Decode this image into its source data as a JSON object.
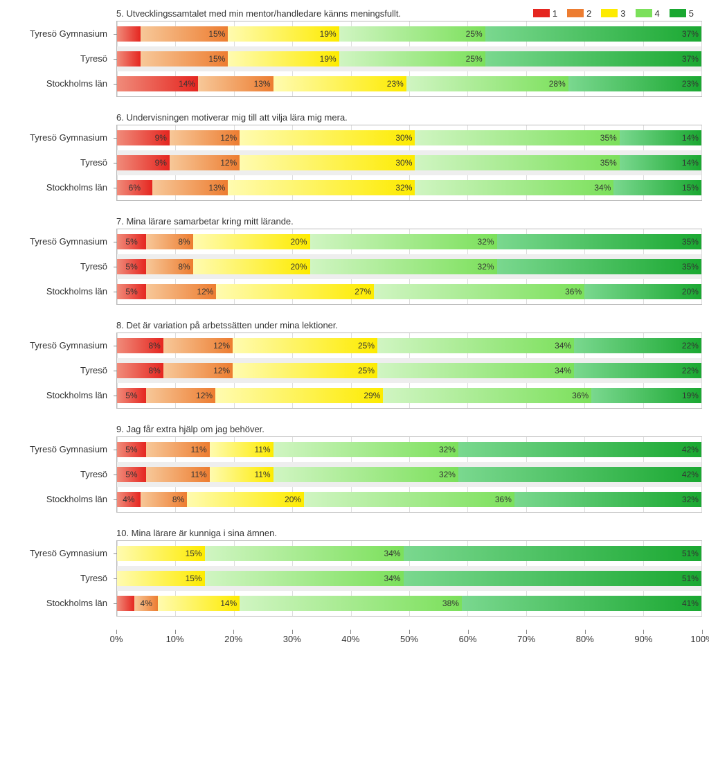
{
  "legend": {
    "items": [
      "1",
      "2",
      "3",
      "4",
      "5"
    ],
    "colors": [
      "#e52620",
      "#ed7d31",
      "#fdeb00",
      "#7be05b",
      "#1aa831"
    ]
  },
  "gradients": {
    "1": [
      "#f08b7a",
      "#e52620"
    ],
    "2": [
      "#f7c899",
      "#ed7d31"
    ],
    "3": [
      "#fffbb0",
      "#fdeb00"
    ],
    "4": [
      "#d0f5c2",
      "#7be05b"
    ],
    "5": [
      "#7ad88f",
      "#1aa831"
    ]
  },
  "x_axis": {
    "ticks": [
      0,
      10,
      20,
      30,
      40,
      50,
      60,
      70,
      80,
      90,
      100
    ],
    "labels": [
      "0%",
      "10%",
      "20%",
      "30%",
      "40%",
      "50%",
      "60%",
      "70%",
      "80%",
      "90%",
      "100%"
    ]
  },
  "row_alt_bg": "#eeeeee",
  "charts": [
    {
      "title": "5. Utvecklingssamtalet med min mentor/handledare känns meningsfullt.",
      "show_legend": true,
      "rows": [
        {
          "label": "Tyresö Gymnasium",
          "values": [
            4,
            15,
            19,
            25,
            37
          ],
          "show": [
            false,
            true,
            true,
            true,
            true
          ]
        },
        {
          "label": "Tyresö",
          "values": [
            4,
            15,
            19,
            25,
            37
          ],
          "show": [
            false,
            true,
            true,
            true,
            true
          ]
        },
        {
          "label": "Stockholms län",
          "values": [
            14,
            13,
            23,
            28,
            23
          ],
          "show": [
            true,
            true,
            true,
            true,
            true
          ]
        }
      ]
    },
    {
      "title": "6. Undervisningen motiverar mig till att vilja lära mig mera.",
      "show_legend": false,
      "rows": [
        {
          "label": "Tyresö Gymnasium",
          "values": [
            9,
            12,
            30,
            35,
            14
          ],
          "show": [
            true,
            true,
            true,
            true,
            true
          ]
        },
        {
          "label": "Tyresö",
          "values": [
            9,
            12,
            30,
            35,
            14
          ],
          "show": [
            true,
            true,
            true,
            true,
            true
          ]
        },
        {
          "label": "Stockholms län",
          "values": [
            6,
            13,
            32,
            34,
            15
          ],
          "show": [
            true,
            true,
            true,
            true,
            true
          ]
        }
      ]
    },
    {
      "title": "7. Mina lärare samarbetar kring mitt lärande.",
      "show_legend": false,
      "rows": [
        {
          "label": "Tyresö Gymnasium",
          "values": [
            5,
            8,
            20,
            32,
            35
          ],
          "show": [
            true,
            true,
            true,
            true,
            true
          ]
        },
        {
          "label": "Tyresö",
          "values": [
            5,
            8,
            20,
            32,
            35
          ],
          "show": [
            true,
            true,
            true,
            true,
            true
          ]
        },
        {
          "label": "Stockholms län",
          "values": [
            5,
            12,
            27,
            36,
            20
          ],
          "show": [
            true,
            true,
            true,
            true,
            true
          ]
        }
      ]
    },
    {
      "title": "8. Det är variation på arbetssätten under mina lektioner.",
      "show_legend": false,
      "rows": [
        {
          "label": "Tyresö Gymnasium",
          "values": [
            8,
            12,
            25,
            34,
            22
          ],
          "show": [
            true,
            true,
            true,
            true,
            true
          ]
        },
        {
          "label": "Tyresö",
          "values": [
            8,
            12,
            25,
            34,
            22
          ],
          "show": [
            true,
            true,
            true,
            true,
            true
          ]
        },
        {
          "label": "Stockholms län",
          "values": [
            5,
            12,
            29,
            36,
            19
          ],
          "show": [
            true,
            true,
            true,
            true,
            true
          ]
        }
      ]
    },
    {
      "title": "9. Jag får extra hjälp om jag behöver.",
      "show_legend": false,
      "rows": [
        {
          "label": "Tyresö Gymnasium",
          "values": [
            5,
            11,
            11,
            32,
            42
          ],
          "show": [
            true,
            true,
            true,
            true,
            true
          ]
        },
        {
          "label": "Tyresö",
          "values": [
            5,
            11,
            11,
            32,
            42
          ],
          "show": [
            true,
            true,
            true,
            true,
            true
          ]
        },
        {
          "label": "Stockholms län",
          "values": [
            4,
            8,
            20,
            36,
            32
          ],
          "show": [
            true,
            true,
            true,
            true,
            true
          ]
        }
      ]
    },
    {
      "title": "10. Mina lärare är kunniga i sina ämnen.",
      "show_legend": false,
      "rows": [
        {
          "label": "Tyresö Gymnasium",
          "values": [
            0,
            0,
            15,
            34,
            51
          ],
          "show": [
            false,
            false,
            true,
            true,
            true
          ]
        },
        {
          "label": "Tyresö",
          "values": [
            0,
            0,
            15,
            34,
            51
          ],
          "show": [
            false,
            false,
            true,
            true,
            true
          ]
        },
        {
          "label": "Stockholms län",
          "values": [
            3,
            4,
            14,
            38,
            41
          ],
          "show": [
            false,
            true,
            true,
            true,
            true
          ]
        }
      ]
    }
  ]
}
